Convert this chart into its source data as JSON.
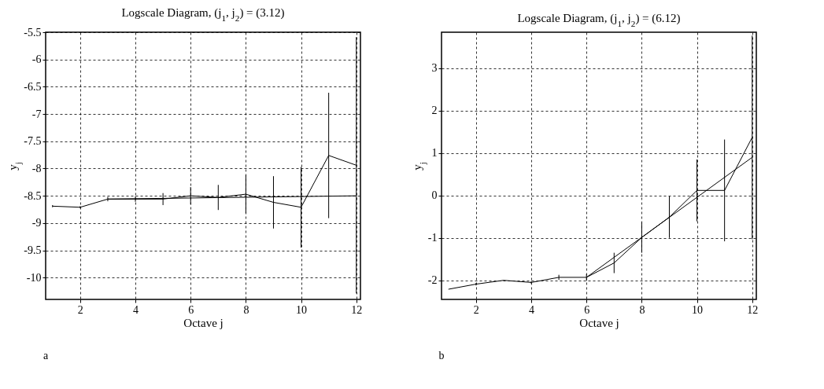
{
  "chart_data": [
    {
      "type": "line",
      "title": "Logscale Diagram,  (j$_{1}$, j$_{2}$) = (3.12)",
      "xlabel": "Octave j",
      "ylabel": "y$_{j}$",
      "x": [
        1,
        2,
        3,
        4,
        5,
        6,
        7,
        8,
        9,
        10,
        11,
        12
      ],
      "series": [
        {
          "color": "#000000",
          "values": [
            -8.69,
            -8.71,
            -8.56,
            -8.56,
            -8.56,
            -8.5,
            -8.53,
            -8.47,
            -8.62,
            -8.71,
            -7.76,
            -7.94
          ],
          "errors": [
            0.02,
            0.02,
            0.04,
            0.05,
            0.11,
            0.16,
            0.23,
            0.35,
            0.48,
            0.74,
            1.15,
            2.35
          ]
        },
        {
          "type": "line",
          "color": "#000000",
          "x": [
            3,
            12
          ],
          "values": [
            -8.56,
            -8.5
          ]
        }
      ],
      "xlim": [
        0.75,
        12.15
      ],
      "ylim": [
        -10.4,
        -5.5
      ],
      "xticks": [
        2,
        4,
        6,
        8,
        10,
        12
      ],
      "yticks": [
        -10,
        -9.5,
        -9,
        -8.5,
        -8,
        -7.5,
        -7,
        -6.5,
        -6,
        -5.5
      ],
      "grid": true,
      "annotations": [
        "a"
      ]
    },
    {
      "type": "line",
      "title": "Logscale Diagram,  (j$_{1}$, j$_{2}$) = (6.12)",
      "xlabel": "Octave j",
      "ylabel": "y$_{j}$",
      "x": [
        1,
        2,
        3,
        4,
        5,
        6,
        7,
        8,
        9,
        10,
        11,
        12
      ],
      "series": [
        {
          "color": "#000000",
          "values": [
            -2.21,
            -2.09,
            -2.0,
            -2.05,
            -1.93,
            -1.93,
            -1.59,
            -0.99,
            -0.51,
            0.12,
            0.12,
            1.37
          ],
          "errors": [
            null,
            0.03,
            null,
            0.03,
            0.06,
            0.08,
            0.24,
            0.36,
            0.49,
            0.73,
            1.2,
            2.4
          ]
        },
        {
          "type": "line",
          "color": "#000000",
          "x": [
            6,
            12
          ],
          "values": [
            -1.93,
            0.9
          ]
        }
      ],
      "xlim": [
        0.75,
        12.15
      ],
      "ylim": [
        -2.45,
        3.85
      ],
      "xticks": [
        2,
        4,
        6,
        8,
        10,
        12
      ],
      "yticks": [
        -2,
        -1,
        0,
        1,
        2,
        3
      ],
      "grid": true,
      "annotations": [
        "b"
      ]
    }
  ]
}
